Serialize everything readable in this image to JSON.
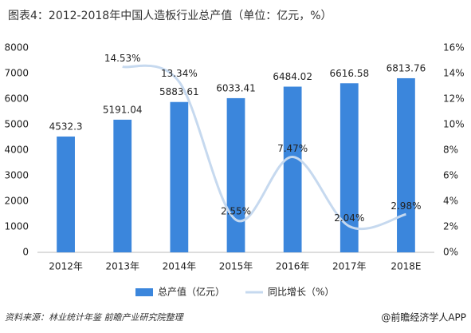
{
  "chart_data": {
    "type": "bar-line",
    "title": "图表4：2012-2018年中国人造板行业总产值（单位：亿元，%）",
    "categories": [
      "2012年",
      "2013年",
      "2014年",
      "2015年",
      "2016年",
      "2017年",
      "2018E"
    ],
    "series": [
      {
        "name": "总产值（亿元）",
        "color": "#3b86dc",
        "type": "bar",
        "values": [
          4532.3,
          5191.04,
          5883.61,
          6033.41,
          6484.02,
          6616.58,
          6813.76
        ]
      },
      {
        "name": "同比增长（%）",
        "color": "#c6d9ef",
        "type": "line",
        "axis": "y2",
        "values": [
          null,
          14.53,
          13.34,
          2.55,
          7.47,
          2.04,
          2.98
        ],
        "value_labels": [
          null,
          "14.53%",
          "13.34%",
          "2.55%",
          "7.47%",
          "2.04%",
          "2.98%"
        ]
      }
    ],
    "ylim": [
      0,
      8000
    ],
    "yticks": [
      0,
      1000,
      2000,
      3000,
      4000,
      5000,
      6000,
      7000,
      8000
    ],
    "y2lim": [
      0,
      16
    ],
    "y2ticks": [
      {
        "value": 0,
        "label": "0%"
      },
      {
        "value": 2,
        "label": "2%"
      },
      {
        "value": 4,
        "label": "4%"
      },
      {
        "value": 6,
        "label": "6%"
      },
      {
        "value": 8,
        "label": "8%"
      },
      {
        "value": 10,
        "label": "10%"
      },
      {
        "value": 12,
        "label": "12%"
      },
      {
        "value": 14,
        "label": "14%"
      },
      {
        "value": 16,
        "label": "16%"
      }
    ],
    "grid": false,
    "legend": "bottom",
    "source": "资料来源：林业统计年鉴 前瞻产业研究院整理",
    "footer": "@前瞻经济学人APP"
  }
}
